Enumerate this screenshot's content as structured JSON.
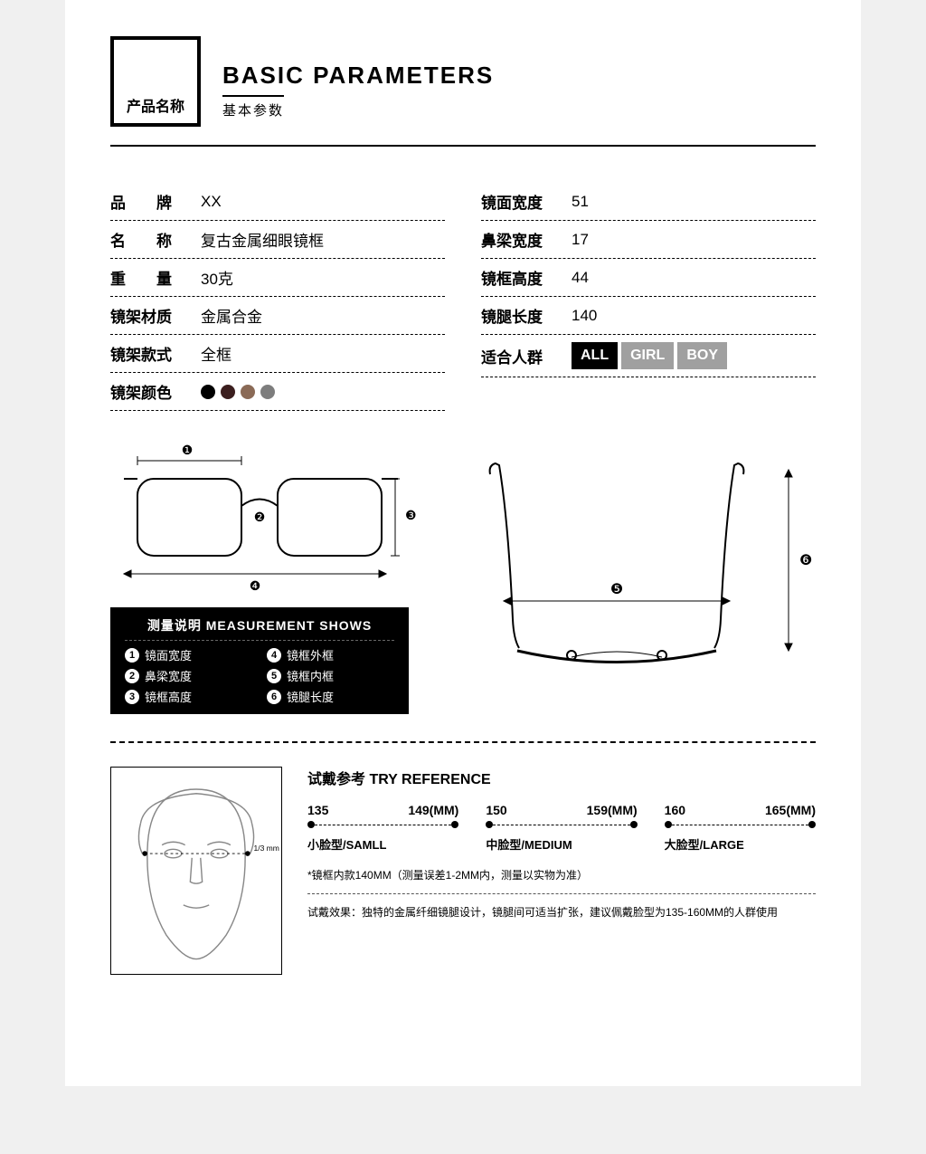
{
  "header": {
    "box_label": "产品名称",
    "title_en": "BASIC PARAMETERS",
    "title_cn": "基本参数"
  },
  "params_left": [
    {
      "label": "品　　牌",
      "value": "XX"
    },
    {
      "label": "名　　称",
      "value": "复古金属细眼镜框"
    },
    {
      "label": "重　　量",
      "value": "30克"
    },
    {
      "label": "镜架材质",
      "value": "金属合金"
    },
    {
      "label": "镜架款式",
      "value": "全框"
    },
    {
      "label": "镜架颜色",
      "value": ""
    }
  ],
  "frame_colors": [
    "#000000",
    "#3b1e1e",
    "#8a6a56",
    "#7d7d7d"
  ],
  "params_right": [
    {
      "label": "镜面宽度",
      "value": "51"
    },
    {
      "label": "鼻梁宽度",
      "value": "17"
    },
    {
      "label": "镜框高度",
      "value": "44"
    },
    {
      "label": "镜腿长度",
      "value": "140"
    },
    {
      "label": "适合人群",
      "value": ""
    }
  ],
  "audience_badges": [
    {
      "text": "ALL",
      "bg": "#000000"
    },
    {
      "text": "GIRL",
      "bg": "#a0a0a0"
    },
    {
      "text": "BOY",
      "bg": "#a0a0a0"
    }
  ],
  "measurement": {
    "title": "测量说明 MEASUREMENT SHOWS",
    "items": [
      {
        "n": "1",
        "t": "镜面宽度"
      },
      {
        "n": "4",
        "t": "镜框外框"
      },
      {
        "n": "2",
        "t": "鼻梁宽度"
      },
      {
        "n": "5",
        "t": "镜框内框"
      },
      {
        "n": "3",
        "t": "镜框高度"
      },
      {
        "n": "6",
        "t": "镜腿长度"
      }
    ],
    "front_markers": [
      "❶",
      "❷",
      "❸",
      "❹"
    ],
    "top_markers": [
      "❺",
      "❻"
    ]
  },
  "tryref": {
    "title": "试戴参考 TRY REFERENCE",
    "ranges": [
      {
        "lo": "135",
        "hi": "149(MM)",
        "label": "小脸型/SAMLL"
      },
      {
        "lo": "150",
        "hi": "159(MM)",
        "label": "中脸型/MEDIUM"
      },
      {
        "lo": "160",
        "hi": "165(MM)",
        "label": "大脸型/LARGE"
      }
    ],
    "note": "*镜框内款140MM（测量误差1-2MM内，测量以实物为准）",
    "desc": "试戴效果：独特的金属纤细镜腿设计，镜腿间可适当扩张，建议佩戴脸型为135-160MM的人群使用",
    "face_note": "1/3\nmm"
  },
  "colors": {
    "page_bg": "#ffffff",
    "text": "#000000",
    "dashed": "#000000"
  }
}
